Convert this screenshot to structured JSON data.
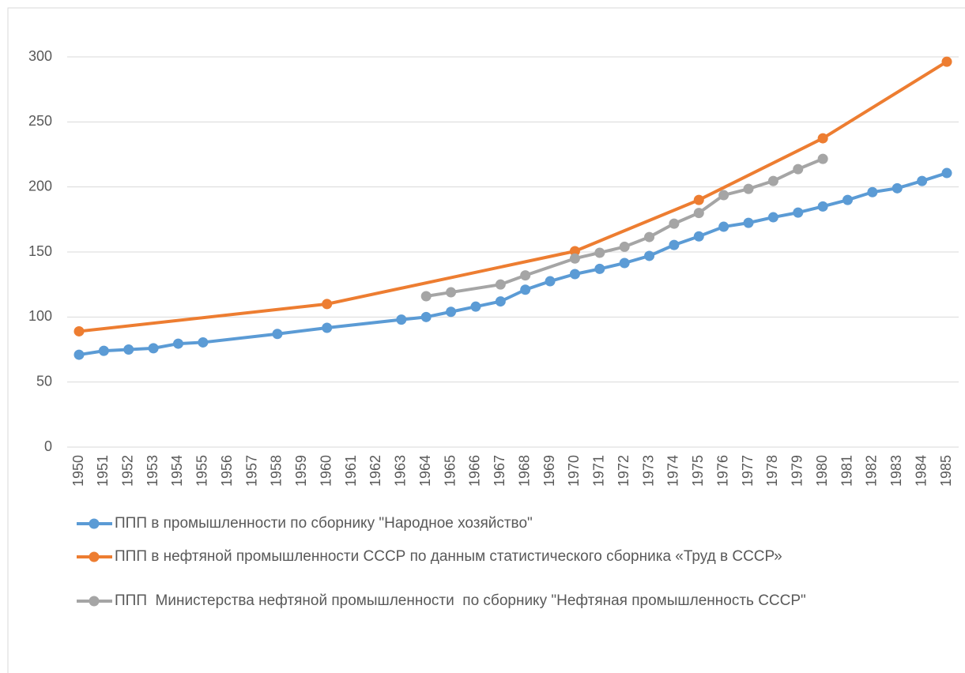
{
  "chart_data": {
    "type": "line",
    "categories": [
      "1950",
      "1951",
      "1952",
      "1953",
      "1954",
      "1955",
      "1956",
      "1957",
      "1958",
      "1959",
      "1960",
      "1961",
      "1962",
      "1963",
      "1964",
      "1965",
      "1966",
      "1967",
      "1968",
      "1969",
      "1970",
      "1971",
      "1972",
      "1973",
      "1974",
      "1975",
      "1976",
      "1977",
      "1978",
      "1979",
      "1980",
      "1981",
      "1982",
      "1983",
      "1984",
      "1985"
    ],
    "series": [
      {
        "name": "ППП в промышленности по сборнику \"Народное хозяйство\"",
        "color": "#5b9bd5",
        "values": [
          71,
          74,
          75,
          76,
          79.5,
          80.5,
          null,
          null,
          87,
          null,
          91.7,
          null,
          null,
          98,
          100,
          104,
          108,
          112,
          121,
          127.5,
          133,
          137,
          141.5,
          147,
          155.4,
          162,
          169.4,
          172.4,
          176.7,
          180.3,
          185,
          190,
          196,
          199,
          204.6,
          210.7
        ]
      },
      {
        "name": "ППП в нефтяной промышленности СССР по данным статистического сборника «Труд в СССР»",
        "color": "#ed7d31",
        "values": [
          89,
          null,
          null,
          null,
          null,
          null,
          null,
          null,
          null,
          null,
          110,
          null,
          null,
          null,
          null,
          null,
          null,
          null,
          null,
          null,
          150.6,
          null,
          null,
          null,
          null,
          190,
          null,
          null,
          null,
          null,
          237.4,
          null,
          null,
          null,
          null,
          296.3
        ]
      },
      {
        "name": "ППП  Министерства нефтяной промышленности  по сборнику \"Нефтяная промышленность СССР\"",
        "color": "#a5a5a5",
        "values": [
          null,
          null,
          null,
          null,
          null,
          null,
          null,
          null,
          null,
          null,
          null,
          null,
          null,
          null,
          116,
          119,
          null,
          125,
          132,
          null,
          145,
          149.4,
          154,
          161.5,
          171.8,
          180,
          193.7,
          198.5,
          204.6,
          213.7,
          221.6,
          null,
          null,
          null,
          null,
          null
        ]
      }
    ],
    "ylim": [
      0,
      300
    ],
    "yticks": [
      0,
      50,
      100,
      150,
      200,
      250,
      300
    ],
    "grid": true,
    "connect_gaps": true,
    "legend": "bottom"
  }
}
